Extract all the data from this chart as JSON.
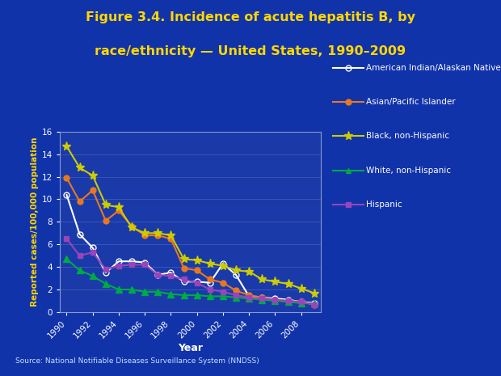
{
  "title_line1": "Figure 3.4. Incidence of acute hepatitis B, by",
  "title_line2": "race/ethnicity — United States, 1990–2009",
  "xlabel": "Year",
  "ylabel": "Reported cases/100,000 population",
  "source": "Source: National Notifiable Diseases Surveillance System (NNDSS)",
  "years": [
    1990,
    1991,
    1992,
    1993,
    1994,
    1995,
    1996,
    1997,
    1998,
    1999,
    2000,
    2001,
    2002,
    2003,
    2004,
    2005,
    2006,
    2007,
    2008,
    2009
  ],
  "series": [
    {
      "name": "American Indian/Alaskan Native",
      "color": "#ffffff",
      "marker": "o",
      "marker_fill": "none",
      "linewidth": 1.5,
      "markersize": 5,
      "values": [
        10.4,
        6.9,
        5.7,
        3.5,
        4.5,
        4.5,
        4.4,
        3.3,
        3.5,
        2.7,
        2.7,
        2.6,
        4.3,
        3.3,
        1.4,
        1.3,
        1.2,
        1.1,
        0.9,
        0.8
      ]
    },
    {
      "name": "Asian/Pacific Islander",
      "color": "#e87820",
      "marker": "o",
      "marker_fill": "#e87820",
      "linewidth": 1.5,
      "markersize": 5,
      "values": [
        11.9,
        9.8,
        10.8,
        8.1,
        9.0,
        7.6,
        6.8,
        6.8,
        6.5,
        3.9,
        3.7,
        2.9,
        2.6,
        1.9,
        1.5,
        1.3,
        1.1,
        1.0,
        0.9,
        0.67
      ]
    },
    {
      "name": "Black, non-Hispanic",
      "color": "#cccc00",
      "marker": "*",
      "marker_fill": "#cccc00",
      "linewidth": 1.5,
      "markersize": 8,
      "values": [
        14.7,
        12.8,
        12.1,
        9.5,
        9.3,
        7.5,
        7.0,
        7.0,
        6.8,
        4.7,
        4.6,
        4.3,
        4.1,
        3.7,
        3.6,
        2.9,
        2.7,
        2.5,
        2.1,
        1.68
      ]
    },
    {
      "name": "White, non-Hispanic",
      "color": "#00aa44",
      "marker": "^",
      "marker_fill": "#00aa44",
      "linewidth": 1.5,
      "markersize": 6,
      "values": [
        4.7,
        3.7,
        3.2,
        2.5,
        2.0,
        2.0,
        1.8,
        1.8,
        1.6,
        1.5,
        1.5,
        1.4,
        1.4,
        1.3,
        1.2,
        1.1,
        1.0,
        0.9,
        0.8,
        0.75
      ]
    },
    {
      "name": "Hispanic",
      "color": "#9944bb",
      "marker": "s",
      "marker_fill": "#9944bb",
      "linewidth": 1.5,
      "markersize": 5,
      "values": [
        6.5,
        5.0,
        5.3,
        3.8,
        4.1,
        4.2,
        4.2,
        3.3,
        3.2,
        2.9,
        2.6,
        2.0,
        1.8,
        1.5,
        1.3,
        1.2,
        1.1,
        1.0,
        0.9,
        0.67
      ]
    }
  ],
  "ylim": [
    0,
    16
  ],
  "yticks": [
    0,
    2,
    4,
    6,
    8,
    10,
    12,
    14,
    16
  ],
  "xticks": [
    1990,
    1992,
    1994,
    1996,
    1998,
    2000,
    2002,
    2004,
    2006,
    2008
  ],
  "background_color": "#1133aa",
  "plot_background_color": "#1a3aaa",
  "title_color": "#ffd700",
  "axis_label_color": "#ffd700",
  "tick_label_color": "#ffffff",
  "legend_text_color": "#ffffff",
  "spine_color": "#8899cc",
  "grid_color": "#8899cc"
}
